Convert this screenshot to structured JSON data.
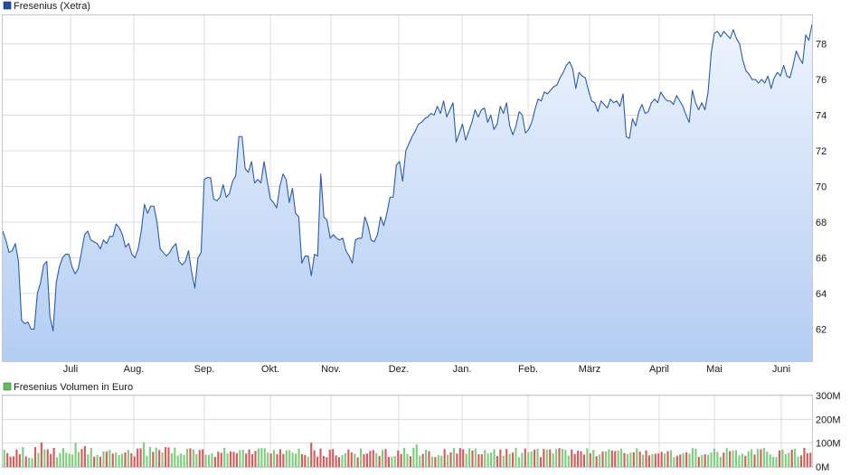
{
  "colors": {
    "price_line": "#2a5cb0",
    "area_top": "#eef4fd",
    "area_bottom": "#b3cdf3",
    "volume_up": "#7ccf7c",
    "volume_down": "#d85b5b",
    "grid": "#dcdcdc",
    "legend_price": "#1f4ea3",
    "legend_volume": "#5fbf5f"
  },
  "chart_data": [
    {
      "type": "area",
      "title": "Fresenius (Xetra)",
      "legend": "Fresenius (Xetra)",
      "x_tick_labels": [
        "Juli",
        "Aug.",
        "Sep.",
        "Okt.",
        "Nov.",
        "Dez.",
        "Jan.",
        "Feb.",
        "März",
        "April",
        "Mai",
        "Juni"
      ],
      "y_ticks": [
        62,
        64,
        66,
        68,
        70,
        72,
        74,
        76,
        78
      ],
      "ylim": [
        60.2,
        79.6
      ],
      "grid": true,
      "legend_position": "top-left",
      "series": [
        {
          "name": "Fresenius (Xetra)",
          "values": [
            67.5,
            67.0,
            66.3,
            66.4,
            66.8,
            65.8,
            62.5,
            62.3,
            62.4,
            62.0,
            62.0,
            64.0,
            64.6,
            65.6,
            65.8,
            62.7,
            61.9,
            64.6,
            65.5,
            66.0,
            66.2,
            66.2,
            65.5,
            65.1,
            65.4,
            66.3,
            67.3,
            67.5,
            67.0,
            66.9,
            66.8,
            66.5,
            67.0,
            66.8,
            67.2,
            67.2,
            67.9,
            67.7,
            67.3,
            66.6,
            66.8,
            66.2,
            66.0,
            66.5,
            67.5,
            69.0,
            68.5,
            68.9,
            68.9,
            68.0,
            66.5,
            66.3,
            66.1,
            66.3,
            66.6,
            66.8,
            65.8,
            65.6,
            65.8,
            66.4,
            65.2,
            64.3,
            66.0,
            66.3,
            70.4,
            70.5,
            70.5,
            69.3,
            69.2,
            69.4,
            70.1,
            69.4,
            69.6,
            70.3,
            70.6,
            72.8,
            72.8,
            71.0,
            70.8,
            71.4,
            70.2,
            70.4,
            70.2,
            71.4,
            70.3,
            69.3,
            69.1,
            68.8,
            70.0,
            70.7,
            70.4,
            69.1,
            69.9,
            68.5,
            68.3,
            65.7,
            66.1,
            66.1,
            65.0,
            66.2,
            66.1,
            70.7,
            68.3,
            68.1,
            67.1,
            67.3,
            67.1,
            67.0,
            67.1,
            66.4,
            66.1,
            65.7,
            67.0,
            67.1,
            67.1,
            68.3,
            67.8,
            67.0,
            66.9,
            67.3,
            68.3,
            67.8,
            68.5,
            69.4,
            69.4,
            71.2,
            71.4,
            70.3,
            72.0,
            72.4,
            72.8,
            73.1,
            73.5,
            73.6,
            73.8,
            73.9,
            74.1,
            74.0,
            74.5,
            74.1,
            74.8,
            73.9,
            74.3,
            74.7,
            72.5,
            73.0,
            73.5,
            72.6,
            73.1,
            73.6,
            74.3,
            73.9,
            74.3,
            74.4,
            73.6,
            74.0,
            73.2,
            73.5,
            74.5,
            74.1,
            74.7,
            73.4,
            72.9,
            73.4,
            74.2,
            74.0,
            73.0,
            73.2,
            73.6,
            74.3,
            74.9,
            74.8,
            75.3,
            75.2,
            75.4,
            75.6,
            75.7,
            76.1,
            76.4,
            76.8,
            77.0,
            76.6,
            75.5,
            76.4,
            76.2,
            76.1,
            75.4,
            74.8,
            74.7,
            74.2,
            74.8,
            74.6,
            74.4,
            74.9,
            74.7,
            74.8,
            74.5,
            75.2,
            72.8,
            72.7,
            73.8,
            73.4,
            74.2,
            74.6,
            74.1,
            74.2,
            74.7,
            74.9,
            74.7,
            75.3,
            75.0,
            74.8,
            74.8,
            74.6,
            75.1,
            74.8,
            74.5,
            74.0,
            73.6,
            75.4,
            74.7,
            74.3,
            74.7,
            74.3,
            75.3,
            77.5,
            78.6,
            78.7,
            78.4,
            78.7,
            78.5,
            78.3,
            78.8,
            78.3,
            78.0,
            77.1,
            76.5,
            76.3,
            76.0,
            76.0,
            75.8,
            76.0,
            75.8,
            76.2,
            75.5,
            76.1,
            76.4,
            76.2,
            76.8,
            76.2,
            76.1,
            76.8,
            77.6,
            77.2,
            76.9,
            78.5,
            78.2,
            79.1
          ]
        }
      ]
    },
    {
      "type": "bar",
      "title": "Fresenius Volumen in Euro",
      "legend": "Fresenius Volumen in Euro",
      "y_tick_labels": [
        "0M",
        "100M",
        "200M",
        "300M"
      ],
      "ylim": [
        0,
        300
      ],
      "grid": true,
      "legend_position": "top-left",
      "series": [
        {
          "name": "Fresenius Volumen in Euro",
          "values": [
            72,
            58,
            43,
            44,
            73,
            53,
            83,
            44,
            38,
            37,
            83,
            59,
            103,
            74,
            74,
            54,
            80,
            40,
            58,
            79,
            59,
            55,
            52,
            102,
            62,
            75,
            87,
            52,
            80,
            43,
            50,
            43,
            65,
            64,
            71,
            56,
            60,
            49,
            55,
            61,
            71,
            57,
            44,
            77,
            78,
            103,
            47,
            84,
            63,
            81,
            71,
            61,
            83,
            82,
            57,
            81,
            48,
            56,
            51,
            76,
            78,
            73,
            53,
            71,
            74,
            51,
            51,
            57,
            42,
            64,
            59,
            80,
            56,
            65,
            63,
            58,
            70,
            72,
            56,
            73,
            53,
            67,
            77,
            79,
            78,
            60,
            56,
            71,
            53,
            74,
            54,
            70,
            70,
            60,
            56,
            77,
            53,
            50,
            43,
            102,
            70,
            43,
            77,
            46,
            41,
            72,
            75,
            48,
            41,
            50,
            57,
            73,
            61,
            55,
            40,
            77,
            53,
            56,
            67,
            71,
            57,
            46,
            71,
            75,
            42,
            43,
            46,
            69,
            54,
            80,
            55,
            45,
            80,
            94,
            47,
            54,
            72,
            66,
            43,
            41,
            49,
            47,
            75,
            51,
            61,
            79,
            56,
            79,
            74,
            56,
            78,
            69,
            77,
            53,
            53,
            71,
            56,
            60,
            74,
            46,
            73,
            46,
            75,
            55,
            60,
            80,
            41,
            59,
            77,
            62,
            65,
            72,
            76,
            41,
            75,
            73,
            73,
            57,
            75,
            79,
            76,
            72,
            47,
            73,
            54,
            68,
            66,
            52,
            78,
            57,
            72,
            45,
            52,
            64,
            65,
            74,
            69,
            67,
            69,
            76,
            58,
            54,
            60,
            61,
            78,
            64,
            51,
            69,
            48,
            53,
            55,
            56,
            63,
            56,
            66,
            70,
            41,
            47,
            52,
            58,
            61,
            55,
            79,
            76,
            42,
            49,
            53,
            51,
            61,
            76,
            63,
            42,
            60,
            79,
            66,
            68,
            70,
            48,
            55,
            46,
            66,
            74,
            52,
            75,
            74,
            80,
            64,
            52,
            42,
            41,
            69,
            73,
            53,
            59,
            72,
            76,
            43,
            48,
            80,
            57,
            60
          ],
          "up": [
            true,
            false,
            false,
            false,
            false,
            false,
            true,
            false,
            true,
            true,
            false,
            true,
            false,
            true,
            false,
            false,
            false,
            true,
            true,
            true,
            true,
            true,
            true,
            true,
            true,
            false,
            false,
            true,
            true,
            false,
            true,
            false,
            true,
            false,
            true,
            false,
            true,
            true,
            true,
            false,
            true,
            false,
            false,
            false,
            false,
            true,
            true,
            true,
            false,
            true,
            false,
            true,
            false,
            false,
            true,
            true,
            true,
            true,
            true,
            true,
            false,
            true,
            true,
            false,
            false,
            true,
            true,
            true,
            false,
            false,
            false,
            true,
            true,
            false,
            false,
            false,
            true,
            true,
            false,
            false,
            false,
            false,
            true,
            true,
            true,
            true,
            false,
            true,
            false,
            false,
            false,
            true,
            true,
            true,
            true,
            true,
            false,
            false,
            true,
            false,
            false,
            false,
            false,
            false,
            false,
            false,
            false,
            false,
            false,
            true,
            true,
            false,
            false,
            true,
            false,
            true,
            false,
            false,
            false,
            false,
            true,
            false,
            true,
            false,
            false,
            true,
            true,
            false,
            false,
            true,
            true,
            false,
            true,
            true,
            true,
            false,
            true,
            false,
            true,
            false,
            true,
            true,
            false,
            true,
            false,
            true,
            false,
            false,
            false,
            true,
            true,
            false,
            true,
            false,
            false,
            true,
            true,
            true,
            true,
            false,
            false,
            true,
            false,
            true,
            false,
            true,
            true,
            true,
            false,
            true,
            true,
            false,
            true,
            false,
            false,
            true,
            false,
            true,
            true,
            false,
            true,
            true,
            true,
            false,
            false,
            false,
            false,
            false,
            true,
            false,
            true,
            false,
            true,
            false,
            true,
            true,
            false,
            false,
            true,
            true,
            false,
            true,
            true,
            false,
            true,
            false,
            true,
            false,
            false,
            true,
            false,
            false,
            false,
            true,
            false,
            true,
            true,
            false,
            false,
            true,
            false,
            true,
            true,
            true,
            false,
            true,
            false,
            true,
            true,
            true,
            true,
            true,
            false,
            true,
            false,
            true,
            true,
            true,
            true,
            false,
            true,
            true,
            false,
            true,
            false,
            true,
            true,
            true,
            true,
            true,
            false,
            true,
            true,
            true,
            false,
            true,
            true
          ]
        }
      ]
    }
  ]
}
